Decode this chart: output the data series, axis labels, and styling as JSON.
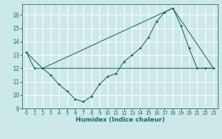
{
  "title": "",
  "xlabel": "Humidex (Indice chaleur)",
  "ylabel": "",
  "bg_color": "#cce8e8",
  "grid_color": "#ffffff",
  "line_color": "#1a6b5e",
  "xlim": [
    -0.5,
    23.5
  ],
  "ylim": [
    9,
    16.8
  ],
  "yticks": [
    9,
    10,
    11,
    12,
    13,
    14,
    15,
    16
  ],
  "xticks": [
    0,
    1,
    2,
    3,
    4,
    5,
    6,
    7,
    8,
    9,
    10,
    11,
    12,
    13,
    14,
    15,
    16,
    17,
    18,
    19,
    20,
    21,
    22,
    23
  ],
  "line1_x": [
    0,
    1,
    2,
    3,
    4,
    5,
    6,
    7,
    8,
    9,
    10,
    11,
    12,
    13,
    14,
    15,
    16,
    17,
    18,
    19,
    20,
    21,
    22,
    23
  ],
  "line1_y": [
    13.2,
    12.0,
    12.0,
    11.5,
    10.8,
    10.3,
    9.7,
    9.5,
    9.9,
    10.8,
    11.4,
    11.6,
    12.5,
    13.0,
    13.5,
    14.3,
    15.5,
    16.2,
    16.5,
    15.2,
    13.5,
    12.0,
    12.0,
    12.0
  ],
  "line2_x": [
    0,
    2,
    10,
    23
  ],
  "line2_y": [
    13.2,
    12.0,
    12.0,
    12.0
  ],
  "line3_x": [
    2,
    18,
    23
  ],
  "line3_y": [
    12.0,
    16.5,
    12.0
  ]
}
